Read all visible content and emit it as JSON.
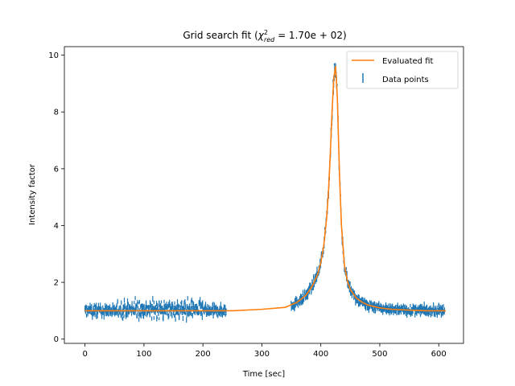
{
  "chart_data": {
    "type": "scatter",
    "title_main": "Grid search fit (",
    "title_chi": "χ",
    "title_sup": "2",
    "title_sub": "red",
    "title_rest": " = 1.70e + 02)",
    "xlabel": "Time [sec]",
    "ylabel": "Intensity factor",
    "xlim": [
      -35,
      642
    ],
    "ylim": [
      -0.15,
      10.3
    ],
    "xticks": [
      "0",
      "100",
      "200",
      "300",
      "400",
      "500",
      "600"
    ],
    "yticks": [
      "0",
      "2",
      "4",
      "6",
      "8",
      "10"
    ],
    "grid": false,
    "legend_position": "top-right",
    "colors": {
      "fit": "#ff7f0e",
      "data": "#1f77b4"
    },
    "series": [
      {
        "name": "Evaluated fit",
        "kind": "line",
        "x": [
          0,
          50,
          100,
          150,
          200,
          250,
          300,
          340,
          360,
          375,
          385,
          395,
          400,
          405,
          410,
          413,
          416,
          419,
          422,
          425,
          428,
          430,
          432,
          435,
          440,
          445,
          450,
          460,
          470,
          480,
          500,
          520,
          550,
          580,
          612
        ],
        "y": [
          1.0,
          1.0,
          1.0,
          1.0,
          1.0,
          1.0,
          1.05,
          1.12,
          1.3,
          1.55,
          1.85,
          2.3,
          2.7,
          3.3,
          4.3,
          5.2,
          6.5,
          8.0,
          9.2,
          9.6,
          8.5,
          7.0,
          5.6,
          4.0,
          2.6,
          2.05,
          1.75,
          1.45,
          1.3,
          1.2,
          1.1,
          1.05,
          1.02,
          1.0,
          1.0
        ]
      },
      {
        "name": "Data points",
        "kind": "scatter",
        "segments": [
          {
            "x_range": [
              0,
              55
            ],
            "center": 1.0,
            "spread": 0.3
          },
          {
            "x_range": [
              55,
              200
            ],
            "center": 1.05,
            "spread": 0.45
          },
          {
            "x_range": [
              200,
              240
            ],
            "center": 1.0,
            "spread": 0.3
          },
          {
            "x_range": [
              350,
              610
            ],
            "follows": "fit",
            "spread": 0.35
          }
        ]
      }
    ]
  }
}
